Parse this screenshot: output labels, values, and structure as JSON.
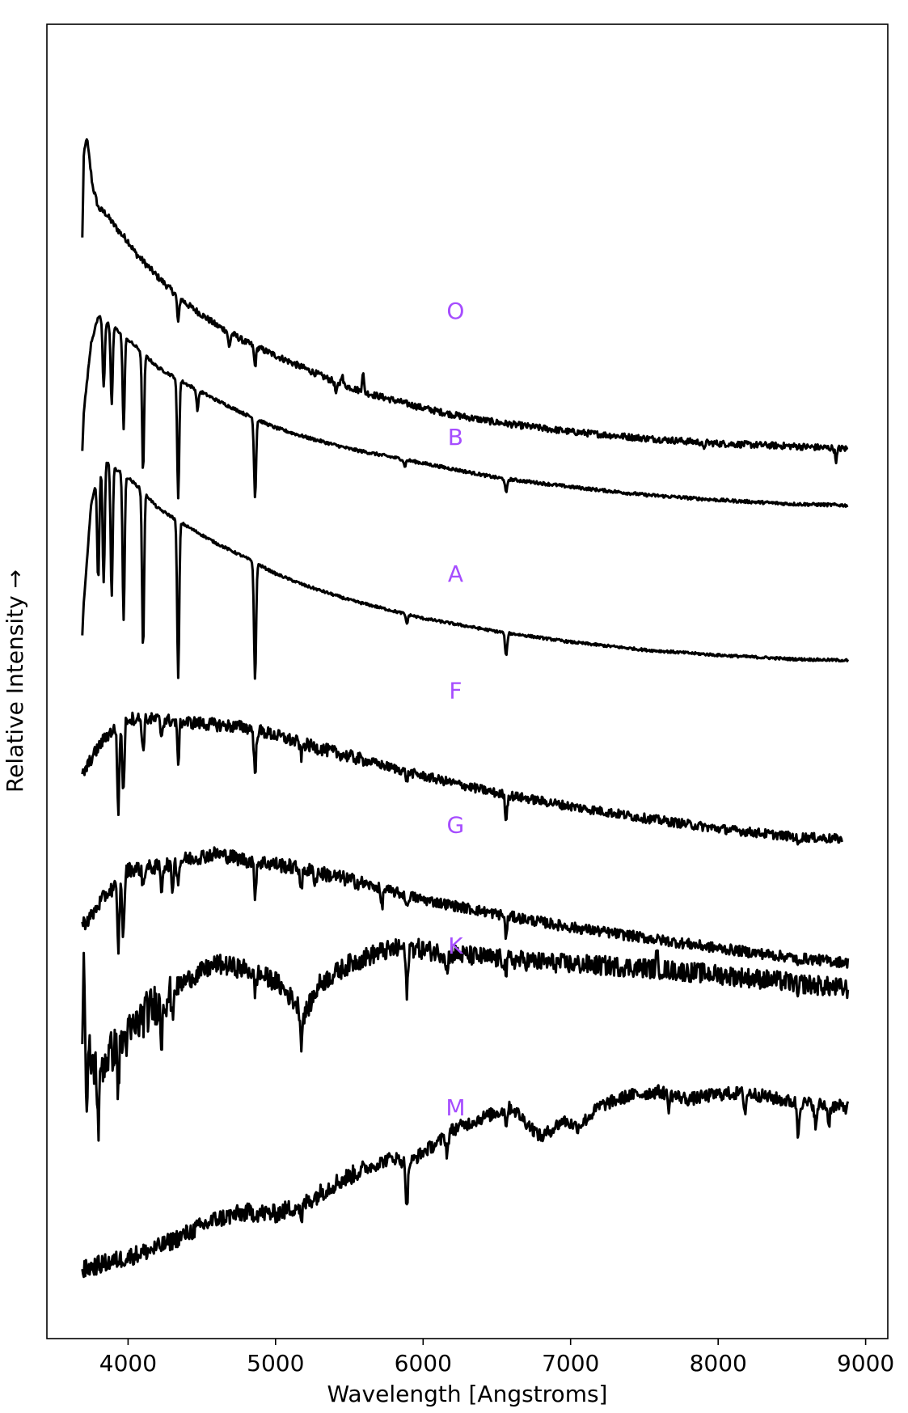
{
  "chart_data": {
    "type": "line",
    "title": "",
    "xlabel": "Wavelength [Angstroms]",
    "ylabel": "Relative Intensity →",
    "xlim": [
      3450,
      9150
    ],
    "xticks": [
      4000,
      5000,
      6000,
      7000,
      8000,
      9000
    ],
    "yticks": [],
    "grid": false,
    "legend": "none",
    "line_color": "#000000",
    "label_color": "#a64dff",
    "series_note": "Spectra are vertically offset; y-values are relative, in arbitrary units (0 = bottom of frame, 100 = top).",
    "series": [
      {
        "name": "O",
        "label_x": 6220,
        "label_y": 77.6,
        "x": [
          3690,
          3700,
          3720,
          3760,
          3800,
          3850,
          3900,
          3950,
          4000,
          4050,
          4100,
          4200,
          4300,
          4400,
          4500,
          4600,
          4700,
          4800,
          5000,
          5200,
          5400,
          5600,
          5800,
          6000,
          6200,
          6500,
          7000,
          7500,
          8000,
          8500,
          8880
        ],
        "y": [
          83.7,
          89.9,
          91.4,
          87.7,
          86.0,
          85.6,
          84.8,
          84.1,
          83.5,
          82.6,
          82.0,
          80.8,
          79.7,
          78.7,
          77.9,
          77.1,
          76.5,
          75.8,
          74.8,
          73.8,
          72.8,
          72.0,
          71.4,
          70.8,
          70.3,
          69.7,
          69.0,
          68.5,
          68.1,
          67.9,
          67.7
        ],
        "absorption": [
          [
            4340,
            2.0
          ],
          [
            4861,
            1.5
          ],
          [
            4686,
            1.2
          ],
          [
            5411,
            0.9
          ],
          [
            7900,
            0.5
          ],
          [
            8800,
            0.9
          ]
        ],
        "emission": [
          [
            5592,
            1.5
          ],
          [
            5450,
            0.8
          ]
        ]
      },
      {
        "name": "B",
        "label_x": 6220,
        "label_y": 68.0,
        "x": [
          3690,
          3700,
          3750,
          3800,
          3850,
          3900,
          4000,
          4100,
          4200,
          4400,
          4600,
          4800,
          5000,
          5200,
          5500,
          6000,
          6500,
          7000,
          7500,
          8000,
          8500,
          8880
        ],
        "y": [
          67.6,
          70.5,
          75.8,
          77.8,
          77.3,
          77.0,
          76.0,
          75.0,
          73.9,
          72.6,
          71.4,
          70.3,
          69.3,
          68.6,
          67.7,
          66.6,
          65.5,
          64.8,
          64.2,
          63.8,
          63.5,
          63.4
        ],
        "absorption": [
          [
            3835,
            5.0
          ],
          [
            3889,
            6.0
          ],
          [
            3970,
            7.0
          ],
          [
            4102,
            9.0
          ],
          [
            4340,
            9.0
          ],
          [
            4471,
            1.5
          ],
          [
            4861,
            6.0
          ],
          [
            5876,
            0.5
          ],
          [
            6563,
            1.1
          ]
        ],
        "emission": []
      },
      {
        "name": "A",
        "label_x": 6220,
        "label_y": 57.6,
        "x": [
          3690,
          3700,
          3750,
          3800,
          3850,
          3900,
          4000,
          4100,
          4200,
          4400,
          4600,
          4800,
          5000,
          5200,
          5500,
          6000,
          6500,
          7000,
          7500,
          8000,
          8500,
          8880
        ],
        "y": [
          53.5,
          56.0,
          63.5,
          65.8,
          66.8,
          66.3,
          65.5,
          64.5,
          63.2,
          61.8,
          60.5,
          59.4,
          58.2,
          57.3,
          56.2,
          54.8,
          53.8,
          53.0,
          52.4,
          52.0,
          51.7,
          51.6
        ],
        "absorption": [
          [
            3798,
            8.0
          ],
          [
            3835,
            9.0
          ],
          [
            3889,
            10.0
          ],
          [
            3970,
            11.0
          ],
          [
            4102,
            12.0
          ],
          [
            4340,
            12.0
          ],
          [
            4861,
            9.0
          ],
          [
            5890,
            0.7
          ],
          [
            6563,
            1.8
          ]
        ],
        "emission": []
      },
      {
        "name": "F",
        "label_x": 6220,
        "label_y": 48.7,
        "x": [
          3690,
          3750,
          3800,
          3850,
          3900,
          3950,
          4000,
          4200,
          4500,
          4800,
          5000,
          5200,
          5500,
          6000,
          6500,
          7000,
          7500,
          8000,
          8500,
          8840
        ],
        "y": [
          42.8,
          44.1,
          45.0,
          45.8,
          46.3,
          46.8,
          47.2,
          47.1,
          46.8,
          46.5,
          45.9,
          45.2,
          44.3,
          42.8,
          41.5,
          40.5,
          39.6,
          38.8,
          38.2,
          38.0
        ],
        "absorption": [
          [
            3934,
            6.5
          ],
          [
            3968,
            5.5
          ],
          [
            4102,
            2.5
          ],
          [
            4227,
            1.2
          ],
          [
            4340,
            3.0
          ],
          [
            4861,
            3.5
          ],
          [
            5175,
            1.0
          ],
          [
            5890,
            0.6
          ],
          [
            6563,
            1.8
          ],
          [
            8542,
            0.6
          ]
        ],
        "emission": []
      },
      {
        "name": "G",
        "label_x": 6220,
        "label_y": 38.5,
        "x": [
          3690,
          3750,
          3800,
          3850,
          3900,
          3950,
          4000,
          4200,
          4400,
          4600,
          4800,
          5000,
          5200,
          5500,
          6000,
          6500,
          7000,
          7500,
          8000,
          8500,
          8880
        ],
        "y": [
          31.5,
          32.1,
          33.0,
          33.8,
          34.3,
          34.8,
          35.7,
          35.9,
          36.5,
          36.9,
          36.4,
          36.1,
          35.7,
          34.9,
          33.4,
          32.3,
          31.3,
          30.5,
          29.7,
          29.0,
          28.6
        ],
        "absorption": [
          [
            3934,
            5.0
          ],
          [
            3968,
            4.5
          ],
          [
            4102,
            1.5
          ],
          [
            4227,
            1.8
          ],
          [
            4300,
            2.0
          ],
          [
            4340,
            1.5
          ],
          [
            4861,
            2.5
          ],
          [
            5175,
            1.6
          ],
          [
            5270,
            0.8
          ],
          [
            5720,
            1.5
          ],
          [
            5890,
            1.0
          ],
          [
            6563,
            1.6
          ],
          [
            8542,
            0.7
          ]
        ],
        "emission": []
      },
      {
        "name": "K",
        "label_x": 6220,
        "label_y": 29.3,
        "x": [
          3690,
          3710,
          3750,
          3800,
          3900,
          4000,
          4100,
          4200,
          4400,
          4600,
          4800,
          5000,
          5100,
          5200,
          5300,
          5500,
          5700,
          5900,
          6100,
          6500,
          7000,
          7500,
          8000,
          8500,
          8880
        ],
        "y": [
          22.5,
          24.5,
          21.0,
          20.5,
          22.0,
          23.0,
          24.5,
          25.6,
          27.3,
          28.5,
          28.1,
          27.2,
          26.0,
          24.7,
          27.0,
          28.5,
          29.4,
          29.8,
          29.4,
          28.9,
          28.5,
          28.2,
          27.7,
          27.1,
          26.6
        ],
        "absorption": [
          [
            3720,
            7.0
          ],
          [
            3800,
            4.5
          ],
          [
            3934,
            3.0
          ],
          [
            4226,
            3.0
          ],
          [
            4300,
            2.0
          ],
          [
            4861,
            1.5
          ],
          [
            5175,
            2.5
          ],
          [
            5890,
            3.8
          ],
          [
            6163,
            1.5
          ],
          [
            6563,
            1.0
          ],
          [
            8542,
            1.0
          ]
        ],
        "emission": [
          [
            3700,
            5.5
          ],
          [
            7585,
            1.0
          ]
        ]
      },
      {
        "name": "M",
        "label_x": 6220,
        "label_y": 17.0,
        "x": [
          3690,
          3800,
          4000,
          4200,
          4400,
          4600,
          4800,
          5000,
          5200,
          5400,
          5600,
          5800,
          5900,
          6000,
          6100,
          6200,
          6400,
          6600,
          6800,
          6950,
          7050,
          7200,
          7400,
          7600,
          7800,
          8000,
          8200,
          8500,
          8880
        ],
        "y": [
          5.2,
          5.6,
          6.2,
          6.9,
          8.0,
          9.1,
          9.6,
          9.5,
          10.3,
          11.8,
          12.9,
          13.8,
          13.3,
          14.2,
          14.9,
          15.9,
          16.8,
          17.6,
          15.3,
          16.6,
          16.1,
          17.7,
          18.5,
          18.8,
          18.2,
          18.6,
          18.7,
          18.0,
          17.6
        ],
        "absorption": [
          [
            5175,
            1.5
          ],
          [
            5890,
            3.5
          ],
          [
            6163,
            1.5
          ],
          [
            6563,
            1.0
          ],
          [
            7665,
            1.0
          ],
          [
            8183,
            1.5
          ],
          [
            8542,
            2.5
          ],
          [
            8662,
            2.0
          ],
          [
            8750,
            1.5
          ]
        ],
        "emission": []
      }
    ]
  }
}
